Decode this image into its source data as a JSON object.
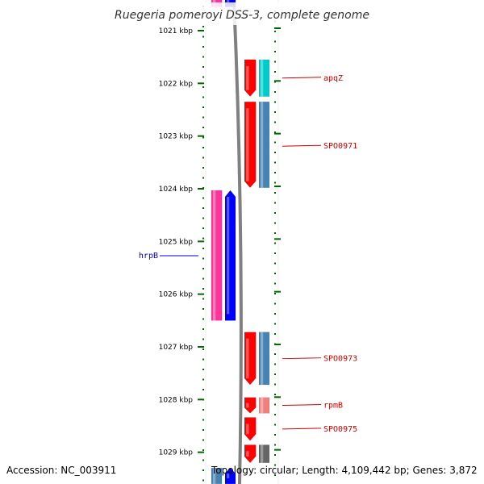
{
  "title": "Ruegeria pomeroyi DSS-3, complete genome",
  "footer": {
    "accession": "Accession: NC_003911",
    "topology": "Topology: circular; Length: 4,109,442 bp; Genes: 3,872"
  },
  "colors": {
    "tick_green": "#006600",
    "backbone_gray": "#808080",
    "red_gene": "#ff0000",
    "pink_gene": "#ff3399",
    "blue_gene": "#0000ff",
    "teal_gene": "#00cccc",
    "steel_gene": "#4682b4",
    "salmon_gene": "#f08080",
    "dark_gray_gene": "#666666",
    "forward_label": "#cc0000",
    "reverse_label": "#0000cc"
  },
  "kbp_ticks": [
    {
      "kbp": 1021,
      "label": "1021 kbp"
    },
    {
      "kbp": 1022,
      "label": "1022 kbp"
    },
    {
      "kbp": 1023,
      "label": "1023 kbp"
    },
    {
      "kbp": 1024,
      "label": "1024 kbp"
    },
    {
      "kbp": 1025,
      "label": "1025 kbp"
    },
    {
      "kbp": 1026,
      "label": "1026 kbp"
    },
    {
      "kbp": 1027,
      "label": "1027 kbp"
    },
    {
      "kbp": 1028,
      "label": "1028 kbp"
    },
    {
      "kbp": 1029,
      "label": "1029 kbp"
    }
  ],
  "genes": [
    {
      "name": "",
      "strand": "reverse",
      "start_kbp": 1020.3,
      "end_kbp": 1020.55,
      "inner": "pink_gene",
      "outer": "blue_gene"
    },
    {
      "name": "apqZ",
      "strand": "forward",
      "start_kbp": 1021.55,
      "end_kbp": 1022.25,
      "inner": "red_gene",
      "outer": "teal_gene",
      "label": "apqZ"
    },
    {
      "name": "SPO0971",
      "strand": "forward",
      "start_kbp": 1022.35,
      "end_kbp": 1023.98,
      "inner": "red_gene",
      "outer": "steel_gene",
      "label": "SPO0971"
    },
    {
      "name": "hrpB",
      "strand": "reverse",
      "start_kbp": 1024.03,
      "end_kbp": 1026.5,
      "inner": "pink_gene",
      "outer": "blue_gene",
      "label": "hrpB"
    },
    {
      "name": "SPO0973",
      "strand": "forward",
      "start_kbp": 1026.72,
      "end_kbp": 1027.72,
      "inner": "red_gene",
      "outer": "steel_gene",
      "label": "SPO0973"
    },
    {
      "name": "rpmB",
      "strand": "forward",
      "start_kbp": 1027.96,
      "end_kbp": 1028.26,
      "inner": "red_gene",
      "outer": "salmon_gene",
      "label": "rpmB"
    },
    {
      "name": "SPO0975",
      "strand": "forward",
      "start_kbp": 1028.34,
      "end_kbp": 1028.78,
      "inner": "red_gene",
      "outer": "",
      "label": "SPO0975"
    },
    {
      "name": "",
      "strand": "forward",
      "start_kbp": 1028.86,
      "end_kbp": 1029.2,
      "inner": "red_gene",
      "outer": "dark_gray_gene"
    },
    {
      "name": "",
      "strand": "reverse",
      "start_kbp": 1029.3,
      "end_kbp": 1029.6,
      "inner": "steel_gene",
      "outer": "blue_gene"
    }
  ]
}
